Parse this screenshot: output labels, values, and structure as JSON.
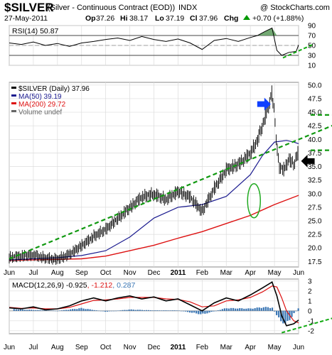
{
  "header": {
    "symbol": "$SILVER",
    "description": "(Silver - Continuous Contract (EOD))",
    "exchange": "INDX",
    "copyright": "@ StockCharts.com",
    "date": "27-May-2011",
    "ohlc": {
      "open_label": "Op",
      "open": "37.26",
      "high_label": "Hi",
      "high": "38.17",
      "low_label": "Lo",
      "low": "37.19",
      "close_label": "Cl",
      "close": "37.96",
      "change_label": "Chg",
      "change": "+0.70 (+1.88%)"
    },
    "change_arrow": "up-triangle",
    "change_color": "#009900"
  },
  "chart_data": [
    {
      "type": "line",
      "name": "rsi-panel",
      "label": "RSI(14) 50.87",
      "ylim": [
        10,
        90
      ],
      "yticks": [
        10,
        30,
        50,
        70,
        90
      ],
      "reference_lines": [
        30,
        70
      ],
      "x_months": [
        "Jun",
        "Jul",
        "Aug",
        "Sep",
        "Oct",
        "Nov",
        "Dec",
        "2011",
        "Feb",
        "Mar",
        "Apr",
        "May",
        "Jun"
      ],
      "series": [
        {
          "name": "RSI(14)",
          "x": [
            0,
            0.5,
            1,
            1.5,
            2,
            2.5,
            3,
            3.5,
            4,
            4.5,
            5,
            5.5,
            6,
            6.5,
            7,
            7.5,
            8,
            8.5,
            9,
            9.5,
            10,
            10.3,
            10.6,
            10.9,
            11.1,
            11.3,
            11.6,
            11.9,
            12
          ],
          "values": [
            55,
            52,
            57,
            50,
            54,
            48,
            55,
            58,
            62,
            65,
            60,
            68,
            62,
            58,
            63,
            55,
            42,
            60,
            64,
            58,
            66,
            70,
            78,
            85,
            40,
            30,
            36,
            38,
            51
          ]
        }
      ],
      "trendline": {
        "x": [
          11.35,
          12.6
        ],
        "y": [
          25,
          52
        ]
      },
      "colors": {
        "line": "#000000",
        "fill": "#5a9a5a"
      }
    },
    {
      "type": "line",
      "name": "price-panel",
      "legend": [
        "$SILVER (Daily) 37.96",
        "MA(50) 39.19",
        "MA(200) 29.72",
        "Volume undef"
      ],
      "ylim": [
        16.5,
        50.5
      ],
      "yticks": [
        17.5,
        20.0,
        22.5,
        25.0,
        27.5,
        30.0,
        32.5,
        35.0,
        37.5,
        40.0,
        42.5,
        45.0,
        47.5,
        50.0
      ],
      "x_months": [
        "Jun",
        "Jul",
        "Aug",
        "Sep",
        "Oct",
        "Nov",
        "Dec",
        "2011",
        "Feb",
        "Mar",
        "Apr",
        "May",
        "Jun"
      ],
      "series": [
        {
          "name": "$SILVER",
          "x": [
            0,
            0.5,
            1,
            1.5,
            2,
            2.5,
            3,
            3.5,
            4,
            4.5,
            5,
            5.5,
            6,
            6.5,
            7,
            7.5,
            8,
            8.5,
            9,
            9.5,
            10,
            10.3,
            10.6,
            10.9,
            11.0,
            11.1,
            11.2,
            11.4,
            11.6,
            11.8,
            12
          ],
          "values": [
            18.3,
            18.6,
            18.8,
            18.2,
            18.0,
            18.9,
            20.5,
            22.2,
            23.5,
            25.5,
            27.5,
            29.5,
            30.0,
            29.0,
            30.5,
            29.5,
            26.8,
            31.0,
            34.5,
            35.5,
            37.5,
            40.0,
            44.0,
            48.5,
            45.0,
            38.5,
            35.0,
            34.5,
            36.5,
            35.5,
            37.96
          ]
        },
        {
          "name": "MA(50)",
          "x": [
            0,
            1,
            2,
            3,
            4,
            5,
            6,
            7,
            8,
            9,
            10,
            10.5,
            11,
            11.5,
            11.8,
            12
          ],
          "values": [
            17.8,
            18.0,
            18.2,
            18.6,
            19.5,
            22.0,
            25.5,
            27.5,
            28.0,
            29.5,
            33.5,
            37.0,
            39.5,
            39.8,
            39.5,
            39.2
          ]
        },
        {
          "name": "MA(200)",
          "x": [
            0,
            1,
            2,
            3,
            4,
            5,
            6,
            7,
            8,
            9,
            10,
            11,
            12
          ],
          "values": [
            17.7,
            17.8,
            17.9,
            18.0,
            18.5,
            19.5,
            20.5,
            21.8,
            23.0,
            24.5,
            26.0,
            28.0,
            29.7
          ]
        }
      ],
      "trendline": {
        "x": [
          0,
          14.2
        ],
        "y": [
          18.0,
          44.0
        ]
      },
      "annotations": {
        "arrows": [
          {
            "direction": "right",
            "color": "#1040ff",
            "x": 10.55,
            "y": 46.5
          },
          {
            "direction": "left",
            "color": "#000000",
            "x": 12.4,
            "y": 36.0
          }
        ],
        "ellipse": {
          "color": "#22aa22",
          "x": 10.15,
          "y": 28.7
        },
        "level_dashes": [
          {
            "y": 44.5
          },
          {
            "y": 38.0
          }
        ]
      },
      "colors": {
        "price": "#000000",
        "ma50": "#1b1b8f",
        "ma200": "#dd1111",
        "trend": "#119911"
      }
    },
    {
      "type": "line",
      "name": "macd-panel",
      "label": "MACD(12,26,9) -0.925, -1.212, 0.287",
      "label_parts": [
        "MACD(12,26,9) -0.925",
        "-1.212",
        "0.287"
      ],
      "ylim": [
        -2.3,
        3.2
      ],
      "yticks": [
        -2,
        -1,
        0,
        1,
        2,
        3
      ],
      "x_months": [
        "Jun",
        "Jul",
        "Aug",
        "Sep",
        "Oct",
        "Nov",
        "Dec",
        "2011",
        "Feb",
        "Mar",
        "Apr",
        "May",
        "Jun"
      ],
      "series": [
        {
          "name": "MACD",
          "x": [
            0,
            0.5,
            1,
            1.5,
            2,
            2.5,
            3,
            3.5,
            4,
            4.5,
            5,
            5.5,
            6,
            6.5,
            7,
            7.5,
            8,
            8.5,
            9,
            9.5,
            10,
            10.5,
            10.9,
            11.1,
            11.3,
            11.5,
            11.8,
            12
          ],
          "values": [
            0.3,
            0.2,
            0.4,
            0.1,
            0.2,
            0.5,
            1.0,
            1.3,
            1.0,
            1.3,
            1.5,
            1.2,
            1.4,
            1.0,
            1.2,
            0.6,
            0.0,
            0.8,
            1.3,
            1.0,
            1.6,
            2.3,
            2.9,
            1.5,
            -0.5,
            -1.5,
            -1.3,
            -0.925
          ]
        },
        {
          "name": "Signal",
          "x": [
            0,
            0.5,
            1,
            1.5,
            2,
            2.5,
            3,
            3.5,
            4,
            4.5,
            5,
            5.5,
            6,
            6.5,
            7,
            7.5,
            8,
            8.5,
            9,
            9.5,
            10,
            10.5,
            10.9,
            11.1,
            11.3,
            11.5,
            11.8,
            12
          ],
          "values": [
            0.35,
            0.25,
            0.3,
            0.2,
            0.2,
            0.35,
            0.7,
            1.05,
            1.1,
            1.2,
            1.35,
            1.35,
            1.35,
            1.2,
            1.15,
            0.9,
            0.4,
            0.5,
            1.0,
            1.1,
            1.35,
            1.9,
            2.5,
            2.4,
            1.3,
            0.0,
            -1.0,
            -1.212
          ]
        },
        {
          "name": "Histogram",
          "x": [
            1,
            2,
            3,
            4,
            5,
            6,
            7,
            8,
            9,
            10,
            10.5,
            10.9,
            11.2,
            11.5,
            11.8,
            12
          ],
          "values": [
            0.1,
            0.0,
            0.3,
            -0.1,
            0.15,
            0.05,
            0.05,
            -0.4,
            0.3,
            0.25,
            0.4,
            0.4,
            -1.0,
            -1.5,
            -0.3,
            0.287
          ]
        }
      ],
      "trendline": {
        "x": [
          11.3,
          14.2
        ],
        "y": [
          -2.2,
          -0.2
        ]
      },
      "colors": {
        "macd": "#000000",
        "signal": "#dd1111",
        "hist": "#3a76b4"
      }
    }
  ]
}
